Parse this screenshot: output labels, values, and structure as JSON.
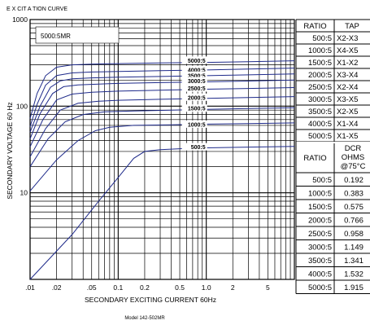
{
  "chart_data": {
    "type": "line",
    "title": "E X CIT   A TION CURVE",
    "box_label": "5000:5MR",
    "xlabel": "SECONDARY EXCITING CURRENT 60Hz",
    "ylabel": "SECONDARY VOLTAGE 60 Hz",
    "footer": "Model 142-502MR",
    "x_scale": "log",
    "y_scale": "log",
    "xlim": [
      0.01,
      10
    ],
    "ylim": [
      1,
      1000
    ],
    "x_tick_labels": [
      {
        "v": 0.01,
        "t": ".01"
      },
      {
        "v": 0.02,
        "t": ".02"
      },
      {
        "v": 0.05,
        "t": ".05"
      },
      {
        "v": 0.1,
        "t": "0.1"
      },
      {
        "v": 0.2,
        "t": "0.2"
      },
      {
        "v": 0.5,
        "t": "0.5"
      },
      {
        "v": 1,
        "t": "1.0"
      },
      {
        "v": 2,
        "t": "2"
      },
      {
        "v": 5,
        "t": "5"
      }
    ],
    "y_tick_labels": [
      {
        "v": 1000,
        "t": "1000"
      },
      {
        "v": 100,
        "t": "100"
      },
      {
        "v": 10,
        "t": "10"
      }
    ],
    "grid": true,
    "series": [
      {
        "name": "5000:5",
        "points": [
          [
            0.01,
            72
          ],
          [
            0.012,
            140
          ],
          [
            0.015,
            225
          ],
          [
            0.02,
            282
          ],
          [
            0.03,
            300
          ],
          [
            0.05,
            306
          ],
          [
            0.1,
            310
          ],
          [
            0.3,
            316
          ],
          [
            1,
            320
          ],
          [
            3,
            326
          ],
          [
            10,
            334
          ]
        ]
      },
      {
        "name": "4000:5",
        "points": [
          [
            0.01,
            58
          ],
          [
            0.012,
            105
          ],
          [
            0.015,
            175
          ],
          [
            0.02,
            226
          ],
          [
            0.03,
            242
          ],
          [
            0.05,
            248
          ],
          [
            0.1,
            252
          ],
          [
            0.3,
            257
          ],
          [
            1,
            262
          ],
          [
            3,
            268
          ],
          [
            10,
            275
          ]
        ]
      },
      {
        "name": "3500:5",
        "points": [
          [
            0.01,
            50
          ],
          [
            0.013,
            100
          ],
          [
            0.017,
            165
          ],
          [
            0.022,
            196
          ],
          [
            0.03,
            207
          ],
          [
            0.05,
            212
          ],
          [
            0.1,
            216
          ],
          [
            0.3,
            220
          ],
          [
            1,
            225
          ],
          [
            3,
            230
          ],
          [
            10,
            236
          ]
        ]
      },
      {
        "name": "3000:5",
        "points": [
          [
            0.01,
            42
          ],
          [
            0.013,
            82
          ],
          [
            0.018,
            140
          ],
          [
            0.024,
            168
          ],
          [
            0.035,
            176
          ],
          [
            0.06,
            180
          ],
          [
            0.1,
            183
          ],
          [
            0.3,
            187
          ],
          [
            1,
            191
          ],
          [
            3,
            195
          ],
          [
            10,
            200
          ]
        ]
      },
      {
        "name": "2500:5",
        "points": [
          [
            0.01,
            34
          ],
          [
            0.014,
            70
          ],
          [
            0.02,
            118
          ],
          [
            0.03,
            138
          ],
          [
            0.05,
            145
          ],
          [
            0.1,
            149
          ],
          [
            0.3,
            153
          ],
          [
            1,
            157
          ],
          [
            3,
            160
          ],
          [
            10,
            164
          ]
        ]
      },
      {
        "name": "2000:5",
        "points": [
          [
            0.01,
            26
          ],
          [
            0.015,
            55
          ],
          [
            0.022,
            90
          ],
          [
            0.035,
            108
          ],
          [
            0.06,
            114
          ],
          [
            0.1,
            117
          ],
          [
            0.3,
            120
          ],
          [
            1,
            123
          ],
          [
            3,
            126
          ],
          [
            10,
            129
          ]
        ]
      },
      {
        "name": "1500:5",
        "points": [
          [
            0.01,
            20
          ],
          [
            0.016,
            42
          ],
          [
            0.025,
            66
          ],
          [
            0.04,
            80
          ],
          [
            0.07,
            86
          ],
          [
            0.15,
            88
          ],
          [
            0.4,
            90
          ],
          [
            1,
            92
          ],
          [
            3,
            94
          ],
          [
            10,
            96
          ]
        ]
      },
      {
        "name": "1000:5",
        "points": [
          [
            0.01,
            10.5
          ],
          [
            0.02,
            24
          ],
          [
            0.035,
            40
          ],
          [
            0.055,
            52
          ],
          [
            0.08,
            57
          ],
          [
            0.15,
            60
          ],
          [
            0.4,
            61
          ],
          [
            1,
            62
          ],
          [
            3,
            63
          ],
          [
            10,
            64
          ]
        ]
      },
      {
        "name": "500:5",
        "points": [
          [
            0.01,
            1
          ],
          [
            0.03,
            3.3
          ],
          [
            0.06,
            8
          ],
          [
            0.1,
            15
          ],
          [
            0.15,
            25
          ],
          [
            0.2,
            30
          ],
          [
            0.3,
            31.5
          ],
          [
            0.6,
            32.5
          ],
          [
            1,
            33
          ],
          [
            3,
            33.7
          ],
          [
            10,
            34.3
          ]
        ]
      }
    ],
    "curve_labels": [
      {
        "text": "5000:5",
        "y": 340
      },
      {
        "text": "4000:5",
        "y": 265
      },
      {
        "text": "3500:5",
        "y": 228
      },
      {
        "text": "3000:5",
        "y": 197
      },
      {
        "text": "2500:5",
        "y": 162
      },
      {
        "text": "2000:5",
        "y": 127
      },
      {
        "text": "1500:5",
        "y": 95
      },
      {
        "text": "1000:5",
        "y": 62
      },
      {
        "text": "500:5",
        "y": 34
      }
    ]
  },
  "tap_table": {
    "headers": [
      "RATIO",
      "TAP"
    ],
    "rows": [
      [
        "500:5",
        "X2-X3"
      ],
      [
        "1000:5",
        "X4-X5"
      ],
      [
        "1500:5",
        "X1-X2"
      ],
      [
        "2000:5",
        "X3-X4"
      ],
      [
        "2500:5",
        "X2-X4"
      ],
      [
        "3000:5",
        "X3-X5"
      ],
      [
        "3500:5",
        "X2-X5"
      ],
      [
        "4000:5",
        "X1-X4"
      ],
      [
        "5000:5",
        "X1-X5"
      ]
    ]
  },
  "dcr_table": {
    "header_ratio": "RATIO",
    "header_dcr_lines": [
      "DCR",
      "OHMS",
      "@75°C"
    ],
    "rows": [
      [
        "500:5",
        "0.192"
      ],
      [
        "1000:5",
        "0.383"
      ],
      [
        "1500:5",
        "0.575"
      ],
      [
        "2000:5",
        "0.766"
      ],
      [
        "2500:5",
        "0.958"
      ],
      [
        "3000:5",
        "1.149"
      ],
      [
        "3500:5",
        "1.341"
      ],
      [
        "4000:5",
        "1.532"
      ],
      [
        "5000:5",
        "1.915"
      ]
    ]
  }
}
